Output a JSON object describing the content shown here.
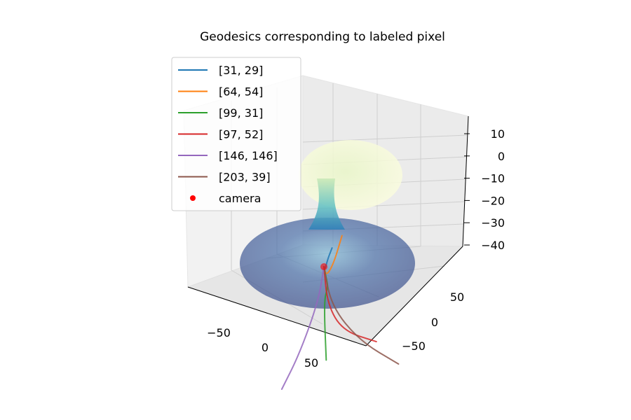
{
  "chart_data": {
    "type": "3d-line",
    "title": "Geodesics corresponding to labeled pixel",
    "legend_position": "upper-left",
    "grid": true,
    "x_ticks": [
      -50,
      0,
      50
    ],
    "y_ticks": [
      -50,
      0,
      50
    ],
    "z_ticks": [
      10,
      0,
      -10,
      -20,
      -30,
      -40
    ],
    "xlim": [
      -100,
      100
    ],
    "ylim": [
      -100,
      100
    ],
    "zlim": [
      -45,
      15
    ],
    "colormap": "YlGnBu",
    "series": [
      {
        "name": "[31, 29]",
        "color": "#1f77b4",
        "points": [
          [
            0,
            0,
            -2
          ],
          [
            -4,
            4,
            -5
          ],
          [
            -12,
            14,
            -2
          ],
          [
            -22,
            26,
            -1
          ]
        ]
      },
      {
        "name": "[64, 54]",
        "color": "#ff7f0e",
        "points": [
          [
            0,
            0,
            -2
          ],
          [
            -4,
            6,
            -8
          ],
          [
            -14,
            22,
            -6
          ],
          [
            -36,
            48,
            -1
          ]
        ]
      },
      {
        "name": "[99, 31]",
        "color": "#2ca02c",
        "points": [
          [
            0,
            0,
            -2
          ],
          [
            -2,
            5,
            -10
          ],
          [
            -6,
            9,
            -14
          ],
          [
            0,
            0,
            -18
          ],
          [
            14,
            -8,
            -42
          ]
        ]
      },
      {
        "name": "[97, 52]",
        "color": "#d62728",
        "points": [
          [
            0,
            0,
            -2
          ],
          [
            8,
            -2,
            -18
          ],
          [
            18,
            8,
            -30
          ],
          [
            34,
            34,
            -36
          ]
        ]
      },
      {
        "name": "[146, 146]",
        "color": "#9467bd",
        "points": [
          [
            0,
            0,
            -2
          ],
          [
            -3,
            -4,
            -18
          ],
          [
            16,
            -40,
            -34
          ],
          [
            42,
            -80,
            -40
          ]
        ]
      },
      {
        "name": "[203, 39]",
        "color": "#8c564b",
        "points": [
          [
            0,
            0,
            -2
          ],
          [
            6,
            4,
            -20
          ],
          [
            30,
            18,
            -34
          ],
          [
            62,
            38,
            -42
          ]
        ]
      }
    ],
    "camera": {
      "name": "camera",
      "color": "#ff0000",
      "point": [
        0,
        0,
        -2
      ]
    }
  }
}
